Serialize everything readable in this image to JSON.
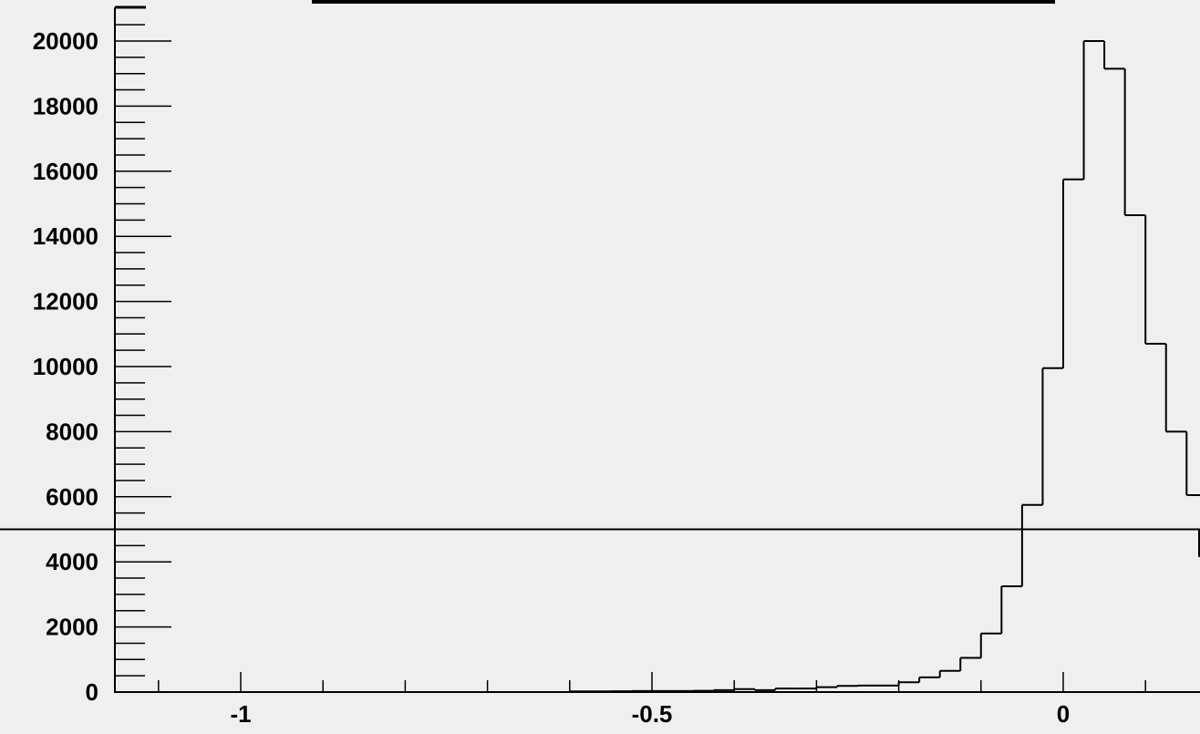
{
  "chart_data": {
    "type": "bar",
    "style": "step-histogram",
    "title": "",
    "xlabel": "",
    "ylabel": "",
    "xlim": [
      -1.15,
      0.17
    ],
    "ylim": [
      0,
      21000
    ],
    "grid": false,
    "legend": "none",
    "line_color": "#000000",
    "background": "#efefef",
    "x_ticks": [
      {
        "value": -1,
        "label": "-1"
      },
      {
        "value": -0.5,
        "label": "-0.5"
      },
      {
        "value": 0,
        "label": "0"
      }
    ],
    "y_ticks": [
      {
        "value": 0,
        "label": "0"
      },
      {
        "value": 2000,
        "label": "2000"
      },
      {
        "value": 4000,
        "label": "4000"
      },
      {
        "value": 6000,
        "label": "6000"
      },
      {
        "value": 8000,
        "label": "8000"
      },
      {
        "value": 10000,
        "label": "10000"
      },
      {
        "value": 12000,
        "label": "12000"
      },
      {
        "value": 14000,
        "label": "14000"
      },
      {
        "value": 16000,
        "label": "16000"
      },
      {
        "value": 18000,
        "label": "18000"
      },
      {
        "value": 20000,
        "label": "20000"
      }
    ],
    "bin_edges": [
      -0.6,
      -0.575,
      -0.55,
      -0.525,
      -0.5,
      -0.475,
      -0.45,
      -0.425,
      -0.4,
      -0.375,
      -0.35,
      -0.325,
      -0.3,
      -0.275,
      -0.25,
      -0.225,
      -0.2,
      -0.175,
      -0.15,
      -0.125,
      -0.1,
      -0.075,
      -0.05,
      -0.025,
      0,
      0.025,
      0.05,
      0.075,
      0.1,
      0.125,
      0.15,
      0.175
    ],
    "values": [
      20,
      20,
      25,
      30,
      30,
      30,
      40,
      60,
      90,
      60,
      110,
      110,
      150,
      190,
      200,
      200,
      300,
      450,
      650,
      1050,
      1800,
      3250,
      5750,
      9950,
      15750,
      20000,
      19150,
      14650,
      10700,
      8000,
      6050,
      5000
    ]
  }
}
